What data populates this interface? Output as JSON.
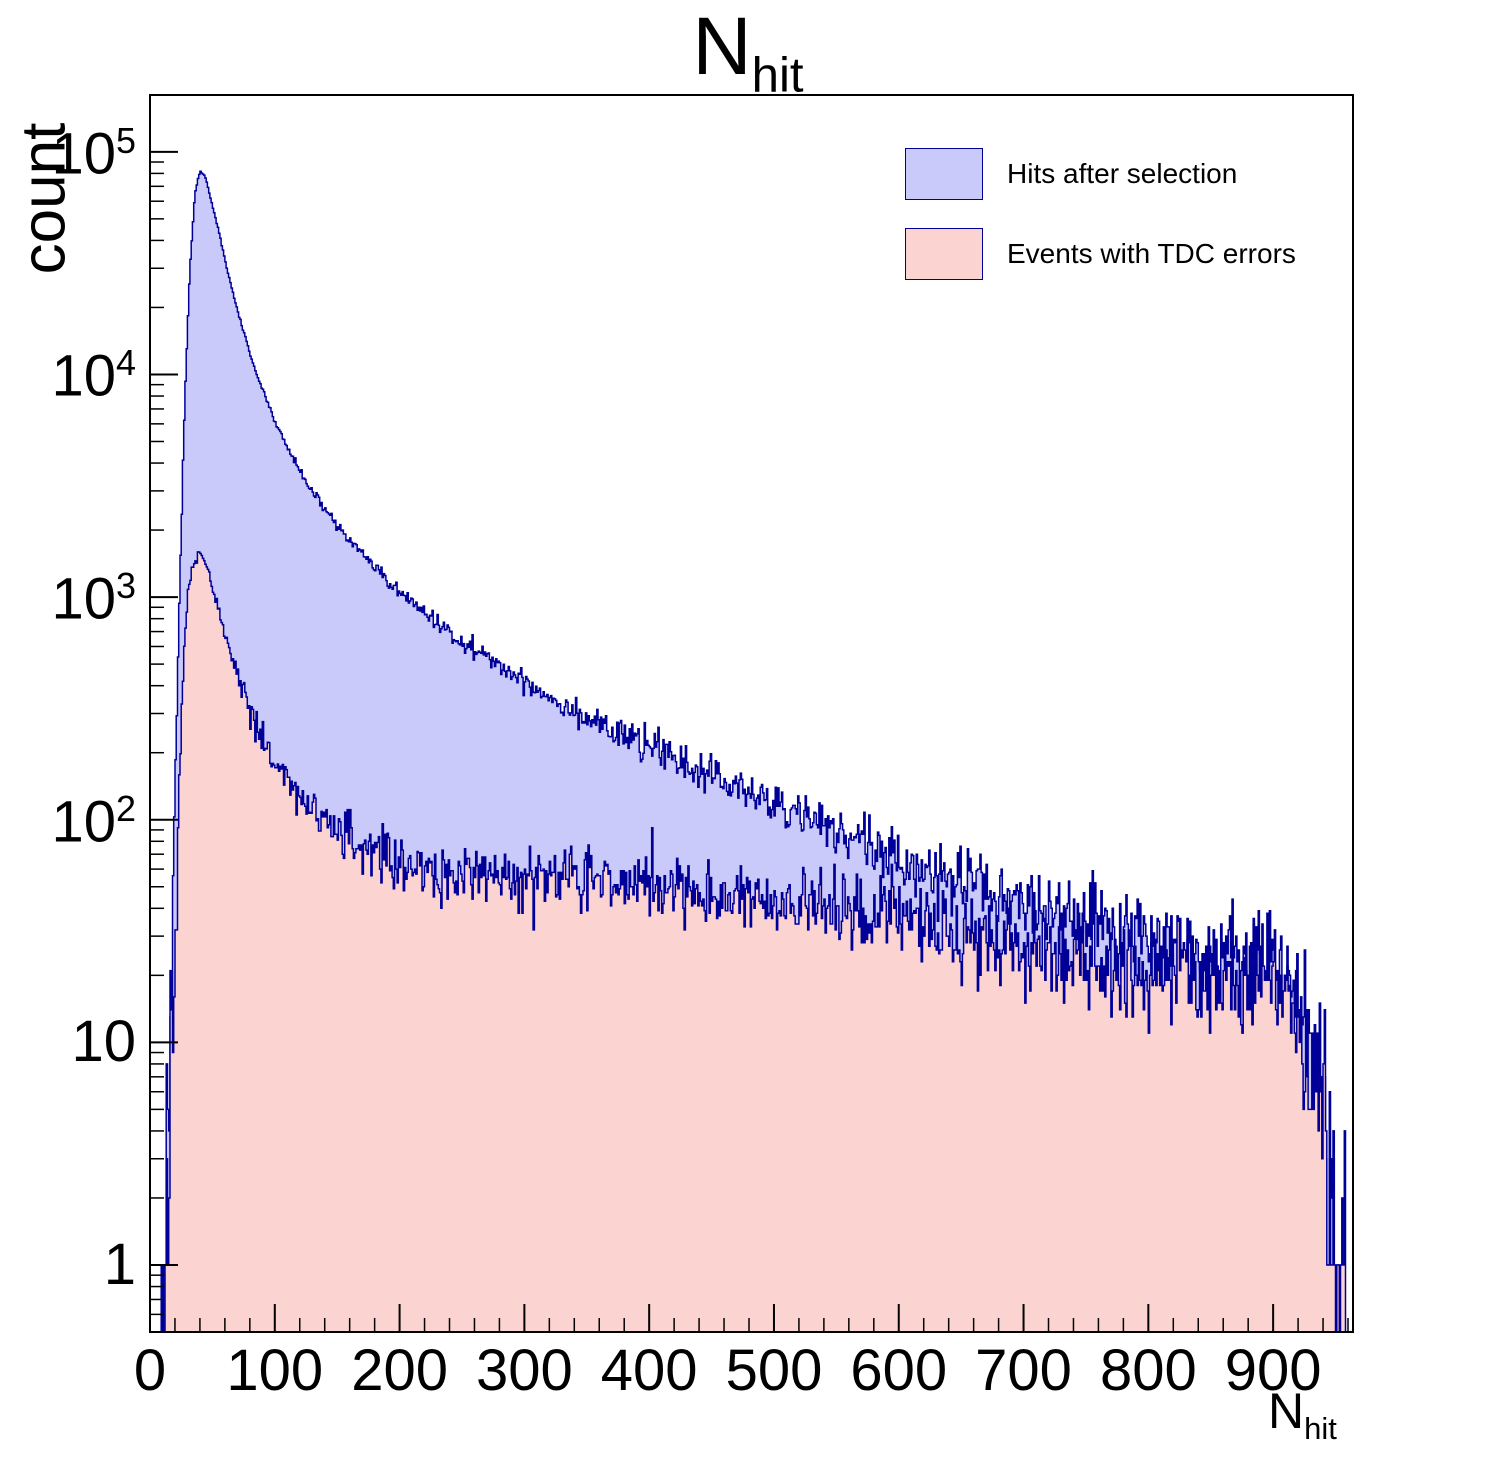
{
  "chart_data": {
    "type": "histogram-overlay",
    "title": {
      "main": "N",
      "sub": "hit"
    },
    "xlabel": {
      "main": "N",
      "sub": "hit"
    },
    "ylabel": "count",
    "x_range": [
      0,
      964
    ],
    "y_range": [
      0.5,
      180000
    ],
    "y_scale": "log",
    "grid": false,
    "bin_width": 1,
    "x_ticks": [
      0,
      100,
      200,
      300,
      400,
      500,
      600,
      700,
      800,
      900
    ],
    "x_minor_step": 20,
    "y_tick_exponents": [
      0,
      1,
      2,
      3,
      4,
      5
    ],
    "axis_color": "#000000",
    "background_color": "#ffffff",
    "noise_seed": 42,
    "legend_position": "top-right",
    "series": [
      {
        "name": "Hits after selection",
        "fill": "#c9c9fa",
        "stroke": "#000099",
        "anchors": [
          [
            8,
            0.6
          ],
          [
            12,
            1.5
          ],
          [
            16,
            12
          ],
          [
            20,
            120
          ],
          [
            24,
            1200
          ],
          [
            28,
            8000
          ],
          [
            32,
            30000
          ],
          [
            36,
            65000
          ],
          [
            40,
            82000
          ],
          [
            44,
            78000
          ],
          [
            48,
            64000
          ],
          [
            52,
            52000
          ],
          [
            56,
            42000
          ],
          [
            60,
            33000
          ],
          [
            65,
            25000
          ],
          [
            70,
            19500
          ],
          [
            75,
            15500
          ],
          [
            80,
            12500
          ],
          [
            85,
            10300
          ],
          [
            90,
            8600
          ],
          [
            95,
            7300
          ],
          [
            100,
            6200
          ],
          [
            110,
            4700
          ],
          [
            120,
            3700
          ],
          [
            130,
            3000
          ],
          [
            140,
            2480
          ],
          [
            150,
            2100
          ],
          [
            160,
            1800
          ],
          [
            170,
            1560
          ],
          [
            180,
            1360
          ],
          [
            190,
            1190
          ],
          [
            200,
            1050
          ],
          [
            210,
            940
          ],
          [
            220,
            850
          ],
          [
            230,
            770
          ],
          [
            240,
            700
          ],
          [
            250,
            640
          ],
          [
            260,
            585
          ],
          [
            270,
            535
          ],
          [
            280,
            492
          ],
          [
            290,
            453
          ],
          [
            300,
            420
          ],
          [
            310,
            388
          ],
          [
            320,
            360
          ],
          [
            330,
            334
          ],
          [
            340,
            310
          ],
          [
            350,
            289
          ],
          [
            360,
            270
          ],
          [
            370,
            253
          ],
          [
            380,
            238
          ],
          [
            390,
            224
          ],
          [
            400,
            211
          ],
          [
            410,
            199
          ],
          [
            420,
            188
          ],
          [
            430,
            178
          ],
          [
            440,
            168
          ],
          [
            450,
            158
          ],
          [
            460,
            149
          ],
          [
            470,
            140
          ],
          [
            480,
            132
          ],
          [
            490,
            125
          ],
          [
            500,
            118
          ],
          [
            510,
            111
          ],
          [
            520,
            105
          ],
          [
            530,
            99
          ],
          [
            540,
            94
          ],
          [
            550,
            89
          ],
          [
            560,
            84
          ],
          [
            570,
            79
          ],
          [
            580,
            75
          ],
          [
            590,
            71
          ],
          [
            600,
            67
          ],
          [
            620,
            60
          ],
          [
            640,
            54
          ],
          [
            660,
            49
          ],
          [
            680,
            45
          ],
          [
            700,
            41
          ],
          [
            720,
            38
          ],
          [
            740,
            35
          ],
          [
            760,
            32
          ],
          [
            780,
            30
          ],
          [
            800,
            28
          ],
          [
            820,
            26
          ],
          [
            840,
            25
          ],
          [
            860,
            24
          ],
          [
            880,
            23
          ],
          [
            895,
            24
          ],
          [
            905,
            21
          ],
          [
            912,
            18
          ],
          [
            918,
            15
          ],
          [
            924,
            12
          ],
          [
            930,
            9
          ],
          [
            936,
            6
          ],
          [
            942,
            4
          ],
          [
            948,
            2
          ],
          [
            953,
            1
          ],
          [
            958,
            0.6
          ]
        ]
      },
      {
        "name": "Events with TDC errors",
        "fill": "#fbd3d0",
        "stroke": "#000099",
        "anchors": [
          [
            12,
            0.6
          ],
          [
            15,
            1.5
          ],
          [
            18,
            8
          ],
          [
            21,
            40
          ],
          [
            24,
            180
          ],
          [
            27,
            520
          ],
          [
            30,
            950
          ],
          [
            33,
            1280
          ],
          [
            36,
            1480
          ],
          [
            40,
            1560
          ],
          [
            44,
            1440
          ],
          [
            48,
            1230
          ],
          [
            52,
            1010
          ],
          [
            56,
            830
          ],
          [
            60,
            680
          ],
          [
            65,
            540
          ],
          [
            70,
            440
          ],
          [
            75,
            368
          ],
          [
            80,
            310
          ],
          [
            85,
            266
          ],
          [
            90,
            232
          ],
          [
            95,
            206
          ],
          [
            100,
            185
          ],
          [
            110,
            152
          ],
          [
            120,
            129
          ],
          [
            130,
            112
          ],
          [
            140,
            99
          ],
          [
            150,
            90
          ],
          [
            160,
            82
          ],
          [
            170,
            76
          ],
          [
            180,
            71
          ],
          [
            190,
            67
          ],
          [
            200,
            64
          ],
          [
            215,
            61
          ],
          [
            230,
            58
          ],
          [
            245,
            57
          ],
          [
            260,
            56
          ],
          [
            280,
            55
          ],
          [
            300,
            55
          ],
          [
            320,
            54
          ],
          [
            340,
            54
          ],
          [
            360,
            53
          ],
          [
            380,
            52
          ],
          [
            400,
            51
          ],
          [
            420,
            49
          ],
          [
            440,
            48
          ],
          [
            460,
            46
          ],
          [
            480,
            45
          ],
          [
            500,
            43
          ],
          [
            520,
            42
          ],
          [
            540,
            40
          ],
          [
            560,
            39
          ],
          [
            580,
            37
          ],
          [
            600,
            36
          ],
          [
            620,
            34
          ],
          [
            640,
            32
          ],
          [
            660,
            30
          ],
          [
            680,
            28
          ],
          [
            700,
            27
          ],
          [
            720,
            25
          ],
          [
            740,
            24
          ],
          [
            760,
            23
          ],
          [
            780,
            22
          ],
          [
            800,
            21
          ],
          [
            820,
            20
          ],
          [
            840,
            19
          ],
          [
            860,
            19
          ],
          [
            880,
            18
          ],
          [
            890,
            21
          ],
          [
            900,
            22
          ],
          [
            906,
            19
          ],
          [
            912,
            16
          ],
          [
            918,
            13
          ],
          [
            924,
            10
          ],
          [
            930,
            8
          ],
          [
            936,
            5
          ],
          [
            942,
            3
          ],
          [
            948,
            2
          ],
          [
            953,
            1
          ],
          [
            958,
            0.6
          ]
        ]
      }
    ]
  }
}
